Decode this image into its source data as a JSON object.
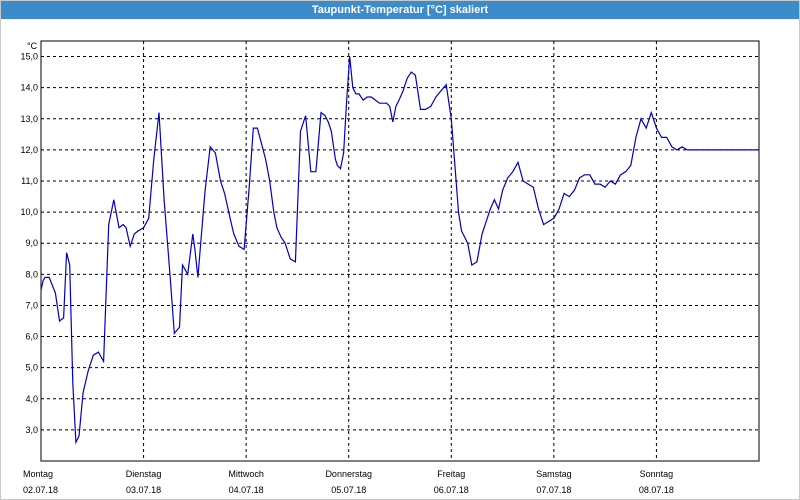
{
  "window": {
    "title": "Taupunkt-Temperatur [°C] skaliert"
  },
  "chart_data": {
    "type": "line",
    "title": "Taupunkt-Temperatur [°C] skaliert",
    "ylabel": "°C",
    "ylim": [
      2.0,
      15.5
    ],
    "xlim": [
      0,
      7
    ],
    "grid": true,
    "y_ticks": [
      "3,0",
      "4,0",
      "5,0",
      "6,0",
      "7,0",
      "8,0",
      "9,0",
      "10,0",
      "11,0",
      "12,0",
      "13,0",
      "14,0",
      "15,0"
    ],
    "y_tick_values": [
      3,
      4,
      5,
      6,
      7,
      8,
      9,
      10,
      11,
      12,
      13,
      14,
      15
    ],
    "x_day_labels": [
      "Montag",
      "Dienstag",
      "Mittwoch",
      "Donnerstag",
      "Freitag",
      "Samstag",
      "Sonntag"
    ],
    "x_date_labels": [
      "02.07.18",
      "03.07.18",
      "04.07.18",
      "05.07.18",
      "06.07.18",
      "07.07.18",
      "08.07.18"
    ],
    "line_color": "#0000c8",
    "series": [
      {
        "x": [
          0,
          0.02,
          0.04,
          0.08,
          0.14,
          0.18,
          0.22,
          0.25,
          0.28,
          0.31,
          0.34,
          0.37,
          0.41,
          0.46,
          0.51,
          0.56,
          0.61,
          0.66,
          0.71,
          0.76,
          0.8,
          0.83,
          0.87,
          0.91,
          0.95,
          1.0,
          1.05,
          1.1,
          1.15,
          1.2,
          1.26,
          1.3,
          1.35,
          1.38,
          1.43,
          1.48,
          1.5,
          1.53,
          1.57,
          1.6,
          1.65,
          1.7,
          1.75,
          1.79,
          1.85,
          1.88,
          1.93,
          1.98,
          2.03,
          2.07,
          2.11,
          2.15,
          2.19,
          2.23,
          2.27,
          2.3,
          2.34,
          2.38,
          2.43,
          2.48,
          2.53,
          2.58,
          2.63,
          2.68,
          2.73,
          2.77,
          2.8,
          2.83,
          2.87,
          2.89,
          2.92,
          2.95,
          2.98,
          3.01,
          3.04,
          3.07,
          3.1,
          3.14,
          3.18,
          3.22,
          3.26,
          3.3,
          3.34,
          3.37,
          3.4,
          3.43,
          3.46,
          3.49,
          3.53,
          3.57,
          3.61,
          3.65,
          3.7,
          3.75,
          3.8,
          3.85,
          3.9,
          3.95,
          4.0,
          4.04,
          4.07,
          4.1,
          4.13,
          4.16,
          4.2,
          4.25,
          4.3,
          4.34,
          4.38,
          4.42,
          4.46,
          4.5,
          4.55,
          4.6,
          4.65,
          4.7,
          4.75,
          4.8,
          4.85,
          4.9,
          4.95,
          5.0,
          5.05,
          5.1,
          5.15,
          5.2,
          5.25,
          5.3,
          5.35,
          5.4,
          5.45,
          5.5,
          5.55,
          5.6,
          5.65,
          5.7,
          5.75,
          5.8,
          5.85,
          5.9,
          5.95,
          6.0,
          6.05,
          6.1,
          6.15,
          6.2,
          6.25,
          6.3,
          6.35,
          6.4,
          6.45,
          6.5,
          6.55,
          6.6,
          6.65,
          6.7,
          6.75,
          6.8,
          6.85,
          6.9,
          6.95,
          7.0
        ],
        "y": [
          7.5,
          7.8,
          7.9,
          7.9,
          7.4,
          6.5,
          6.6,
          8.7,
          8.3,
          4.5,
          2.6,
          2.8,
          4.2,
          4.9,
          5.4,
          5.5,
          5.2,
          9.6,
          10.4,
          9.5,
          9.6,
          9.5,
          8.9,
          9.3,
          9.4,
          9.5,
          9.8,
          11.7,
          13.2,
          10.4,
          7.9,
          6.1,
          6.3,
          8.3,
          8.0,
          9.3,
          8.8,
          7.9,
          9.5,
          10.7,
          12.1,
          11.9,
          11.0,
          10.6,
          9.7,
          9.3,
          8.9,
          8.8,
          10.8,
          12.7,
          12.7,
          12.2,
          11.7,
          11.0,
          10.0,
          9.5,
          9.2,
          9.0,
          8.5,
          8.4,
          12.6,
          13.1,
          11.3,
          11.3,
          13.2,
          13.1,
          12.9,
          12.6,
          11.7,
          11.5,
          11.4,
          11.9,
          13.6,
          15.0,
          14.0,
          13.8,
          13.8,
          13.6,
          13.7,
          13.7,
          13.6,
          13.5,
          13.5,
          13.5,
          13.4,
          12.9,
          13.4,
          13.6,
          13.9,
          14.3,
          14.5,
          14.4,
          13.3,
          13.3,
          13.4,
          13.7,
          13.9,
          14.1,
          13.0,
          11.3,
          10.0,
          9.4,
          9.2,
          9.0,
          8.3,
          8.4,
          9.3,
          9.7,
          10.1,
          10.4,
          10.1,
          10.7,
          11.1,
          11.3,
          11.6,
          11.0,
          10.9,
          10.8,
          10.1,
          9.6,
          9.7,
          9.8,
          10.1,
          10.6,
          10.5,
          10.7,
          11.1,
          11.2,
          11.2,
          10.9,
          10.9,
          10.8,
          11.0,
          10.9,
          11.2,
          11.3,
          11.5,
          12.4,
          13.0,
          12.7,
          13.2,
          12.7,
          12.4,
          12.4,
          12.1,
          12.0,
          12.1,
          12.0,
          12.0,
          12.0,
          12.0,
          12.0,
          12.0,
          12.0,
          12.0,
          12.0,
          12.0,
          12.0,
          12.0,
          12.0,
          12.0,
          12.0
        ]
      }
    ]
  }
}
